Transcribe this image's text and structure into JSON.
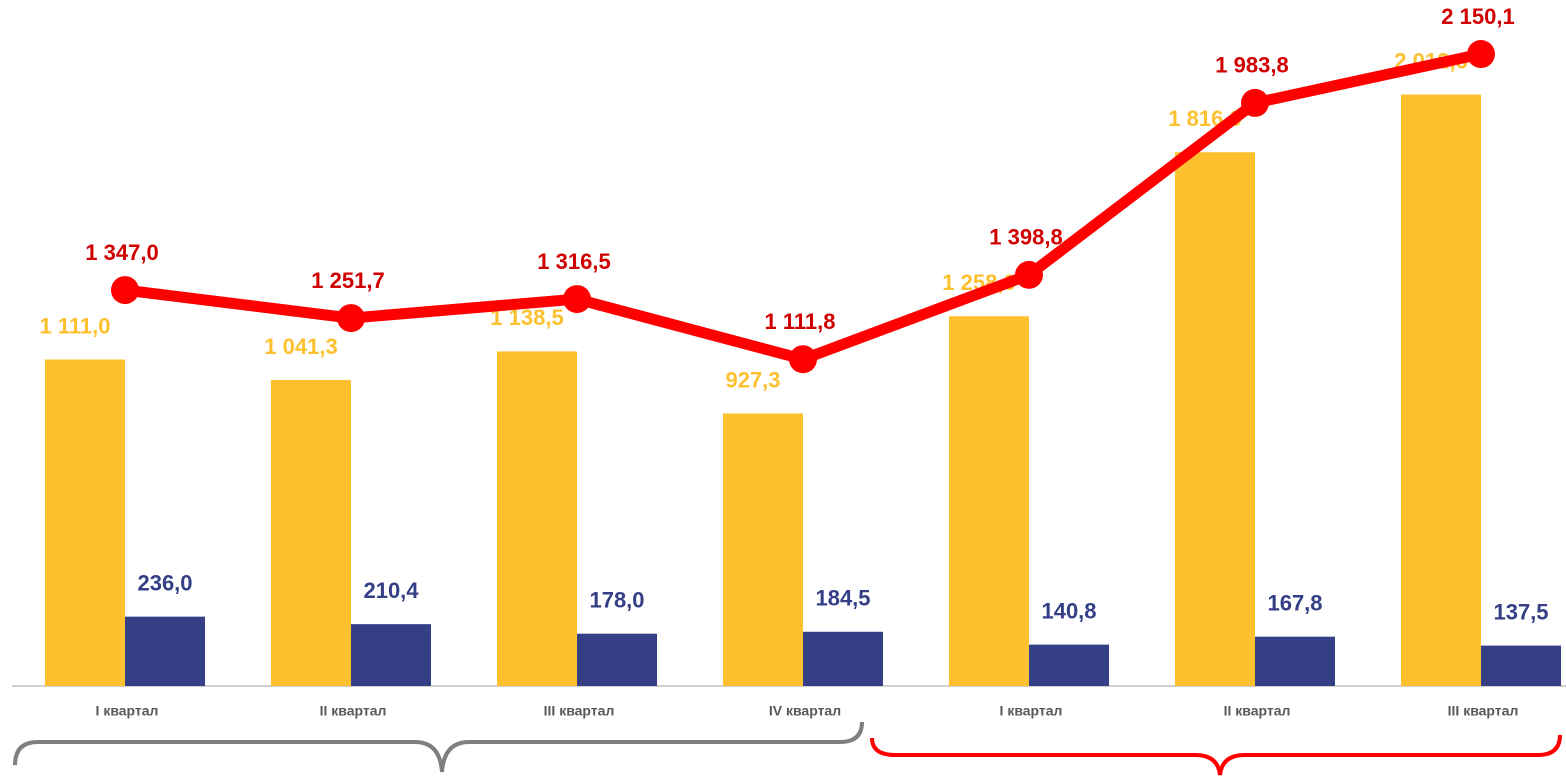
{
  "chart_data": {
    "type": "bar_line",
    "categories": [
      "I квартал",
      "II квартал",
      "III квартал",
      "IV квартал",
      "I квартал",
      "II квартал",
      "III квартал"
    ],
    "series": [
      {
        "type": "bar",
        "color": "#fdc02f",
        "values": [
          1111.0,
          1041.3,
          1138.5,
          927.3,
          1258.0,
          1816.0,
          2012.6
        ],
        "value_labels": [
          "1 111,0",
          "1 041,3",
          "1 138,5",
          "927,3",
          "1 258,0",
          "1 816,0",
          "2 012,6"
        ]
      },
      {
        "type": "bar",
        "color": "#343f86",
        "values": [
          236.0,
          210.4,
          178.0,
          184.5,
          140.8,
          167.8,
          137.5
        ],
        "value_labels": [
          "236,0",
          "210,4",
          "178,0",
          "184,5",
          "140,8",
          "167,8",
          "137,5"
        ]
      },
      {
        "type": "line",
        "color": "#ff0000",
        "label_color": "#d00000",
        "values": [
          1347.0,
          1251.7,
          1316.5,
          1111.8,
          1398.8,
          1983.8,
          2150.1
        ],
        "value_labels": [
          "1 347,0",
          "1 251,7",
          "1 316,5",
          "1 111,8",
          "1 398,8",
          "1 983,8",
          "2 150,1"
        ]
      }
    ],
    "ylim": [
      0,
      2300
    ]
  }
}
